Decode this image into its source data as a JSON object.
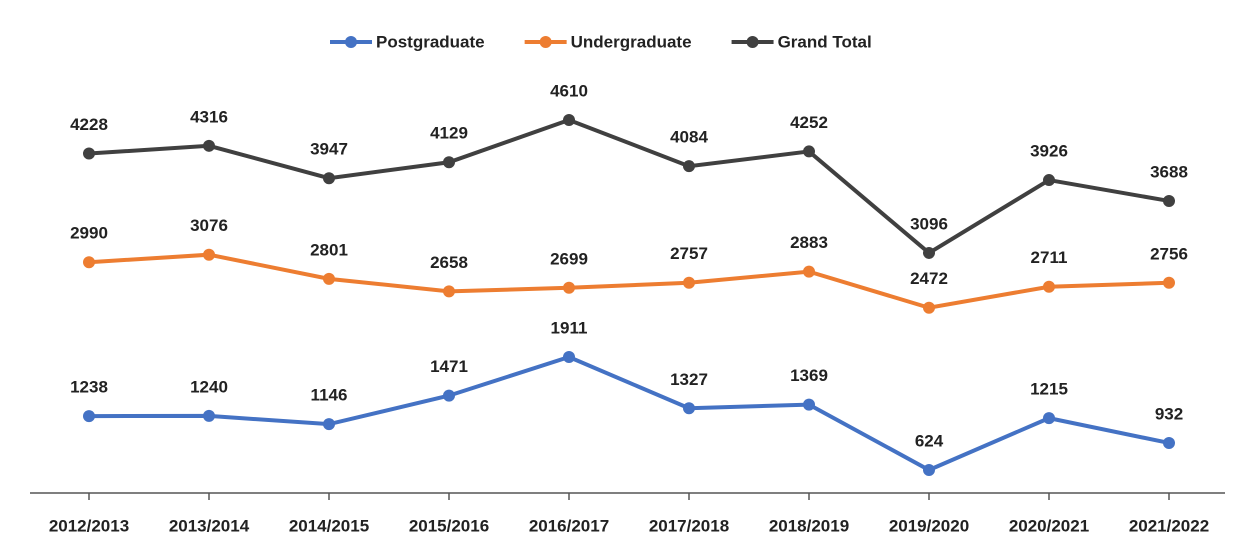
{
  "chart_data": {
    "type": "line",
    "categories": [
      "2012/2013",
      "2013/2014",
      "2014/2015",
      "2015/2016",
      "2016/2017",
      "2017/2018",
      "2018/2019",
      "2019/2020",
      "2020/2021",
      "2021/2022"
    ],
    "series": [
      {
        "name": "Postgraduate",
        "color": "#4472c4",
        "values": [
          1238,
          1240,
          1146,
          1471,
          1911,
          1327,
          1369,
          624,
          1215,
          932
        ]
      },
      {
        "name": "Undergraduate",
        "color": "#ed7d31",
        "values": [
          2990,
          3076,
          2801,
          2658,
          2699,
          2757,
          2883,
          2472,
          2711,
          2756
        ]
      },
      {
        "name": "Grand Total",
        "color": "#404040",
        "values": [
          4228,
          4316,
          3947,
          4129,
          4610,
          4084,
          4252,
          3096,
          3926,
          3688
        ]
      }
    ],
    "legend": "top"
  }
}
